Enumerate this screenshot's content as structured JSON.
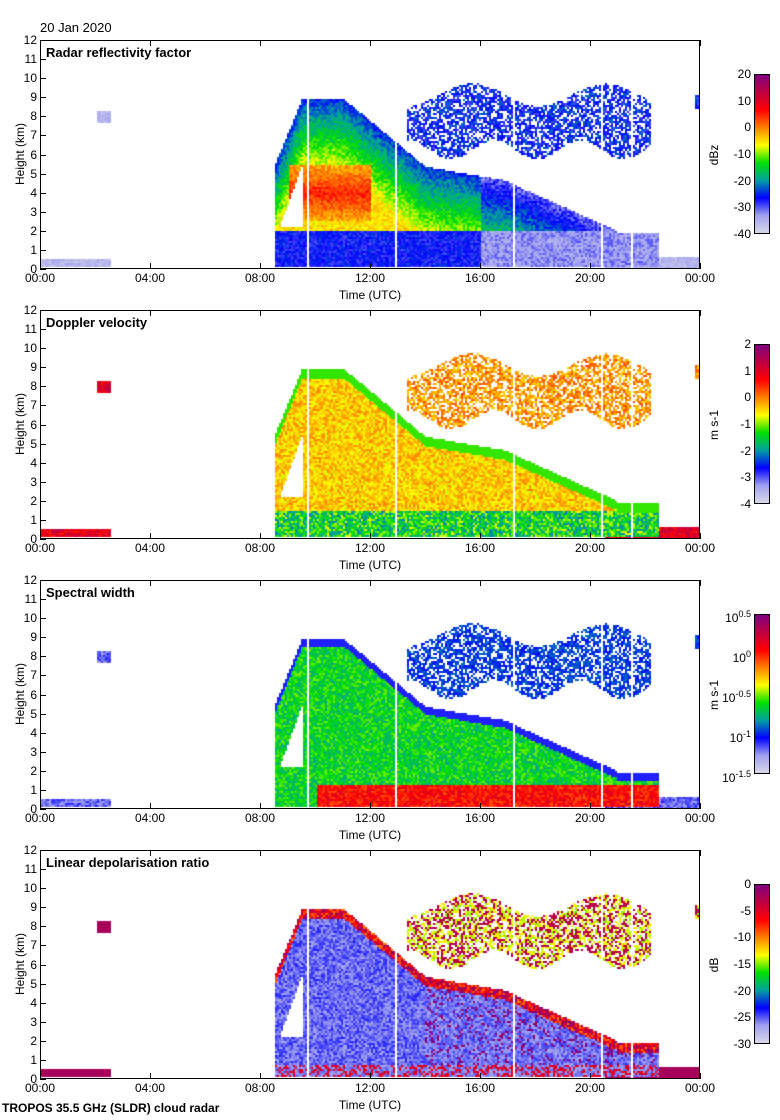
{
  "date": "20 Jan 2020",
  "footer": "TROPOS 35.5 GHz (SLDR) cloud radar",
  "chart_data": [
    {
      "type": "heatmap",
      "title": "Radar reflectivity factor",
      "xlabel": "Time (UTC)",
      "ylabel": "Height (km)",
      "xlim": [
        0,
        24
      ],
      "ylim": [
        0,
        12
      ],
      "xticks": [
        "00:00",
        "04:00",
        "08:00",
        "12:00",
        "16:00",
        "20:00",
        "00:00"
      ],
      "yticks": [
        "0",
        "1",
        "2",
        "3",
        "4",
        "5",
        "6",
        "7",
        "8",
        "9",
        "10",
        "11",
        "12"
      ],
      "colorbar": {
        "unit": "dBz",
        "range": [
          -40,
          20
        ],
        "scale": "linear",
        "ticks": [
          "20",
          "10",
          "0",
          "-10",
          "-20",
          "-30",
          "-40"
        ]
      }
    },
    {
      "type": "heatmap",
      "title": "Doppler velocity",
      "xlabel": "Time (UTC)",
      "ylabel": "Height (km)",
      "xlim": [
        0,
        24
      ],
      "ylim": [
        0,
        12
      ],
      "xticks": [
        "00:00",
        "04:00",
        "08:00",
        "12:00",
        "16:00",
        "20:00",
        "00:00"
      ],
      "yticks": [
        "0",
        "1",
        "2",
        "3",
        "4",
        "5",
        "6",
        "7",
        "8",
        "9",
        "10",
        "11",
        "12"
      ],
      "colorbar": {
        "unit": "m s-1",
        "range": [
          -4,
          2
        ],
        "scale": "linear",
        "ticks": [
          "2",
          "1",
          "0",
          "-1",
          "-2",
          "-3",
          "-4"
        ]
      }
    },
    {
      "type": "heatmap",
      "title": "Spectral width",
      "xlabel": "Time (UTC)",
      "ylabel": "Height (km)",
      "xlim": [
        0,
        24
      ],
      "ylim": [
        0,
        12
      ],
      "xticks": [
        "00:00",
        "04:00",
        "08:00",
        "12:00",
        "16:00",
        "20:00",
        "00:00"
      ],
      "yticks": [
        "0",
        "1",
        "2",
        "3",
        "4",
        "5",
        "6",
        "7",
        "8",
        "9",
        "10",
        "11",
        "12"
      ],
      "colorbar": {
        "unit": "m s-1",
        "range": [
          -1.5,
          0.5
        ],
        "scale": "log10",
        "ticks": [
          "10^0.5",
          "10^0",
          "10^-0.5",
          "10^-1",
          "10^-1.5"
        ]
      }
    },
    {
      "type": "heatmap",
      "title": "Linear depolarisation ratio",
      "xlabel": "Time (UTC)",
      "ylabel": "Height (km)",
      "xlim": [
        0,
        24
      ],
      "ylim": [
        0,
        12
      ],
      "xticks": [
        "00:00",
        "04:00",
        "08:00",
        "12:00",
        "16:00",
        "20:00",
        "00:00"
      ],
      "yticks": [
        "0",
        "1",
        "2",
        "3",
        "4",
        "5",
        "6",
        "7",
        "8",
        "9",
        "10",
        "11",
        "12"
      ],
      "colorbar": {
        "unit": "dB",
        "range": [
          -30,
          0
        ],
        "scale": "linear",
        "ticks": [
          "0",
          "-5",
          "-10",
          "-15",
          "-20",
          "-25",
          "-30"
        ]
      }
    }
  ],
  "colormap": [
    "#d8d8e8",
    "#a0a0f0",
    "#0000ff",
    "#00a0a0",
    "#00e000",
    "#ffff00",
    "#ff8000",
    "#ff0000",
    "#c00040",
    "#800080"
  ]
}
